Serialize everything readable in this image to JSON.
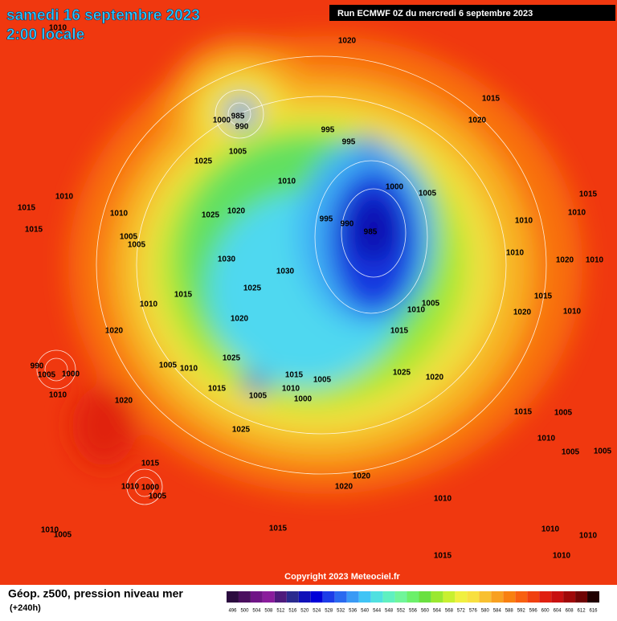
{
  "header": {
    "date": "samedi 16 septembre 2023",
    "time": "2:00 locale",
    "run": "Run ECMWF 0Z du mercredi 6 septembre 2023"
  },
  "map": {
    "isobar_labels": [
      1010,
      1020,
      1015,
      1020,
      985,
      1000,
      990,
      1005,
      995,
      995,
      1025,
      1010,
      1000,
      1005,
      1015,
      1010,
      1015,
      1010,
      1025,
      1020,
      995,
      990,
      985,
      1010,
      1010,
      1005,
      1005,
      1015,
      1030,
      1030,
      1025,
      1010,
      1020,
      1010,
      1015,
      1015,
      1010,
      1005,
      1010,
      1020,
      1020,
      1015,
      1020,
      1010,
      1025,
      1025,
      1020,
      990,
      1005,
      1000,
      1005,
      1010,
      1015,
      1005,
      1010,
      1015,
      1005,
      1000,
      1010,
      1020,
      1025,
      1015,
      1005,
      1010,
      1005,
      1005,
      1015,
      1000,
      1010,
      1005,
      1020,
      1020,
      1010,
      1010,
      1010,
      1010,
      1005,
      1015,
      1015,
      1010
    ],
    "copyright": "Copyright 2023 Meteociel.fr"
  },
  "legend": {
    "title": "Géop. z500, pression niveau mer",
    "lead": "(+240h)",
    "values": [
      496,
      500,
      504,
      508,
      512,
      516,
      520,
      524,
      528,
      532,
      536,
      540,
      544,
      548,
      552,
      556,
      560,
      564,
      568,
      572,
      576,
      580,
      584,
      588,
      592,
      596,
      600,
      604,
      608,
      612,
      616
    ],
    "colors": [
      "#2b0b3f",
      "#4a0f5e",
      "#6f1486",
      "#8a1c9c",
      "#4e1a7c",
      "#2a2a8e",
      "#1010b8",
      "#0000d8",
      "#1c3ce8",
      "#2a6af0",
      "#3a9af5",
      "#40c4f5",
      "#50e0e0",
      "#60f0c0",
      "#70f59a",
      "#6cf06a",
      "#6ae040",
      "#9ae830",
      "#c8f030",
      "#f0f040",
      "#f8e040",
      "#f8c030",
      "#f8a020",
      "#f88010",
      "#f86010",
      "#f04010",
      "#e02010",
      "#c81010",
      "#a00808",
      "#700404",
      "#200000"
    ]
  }
}
